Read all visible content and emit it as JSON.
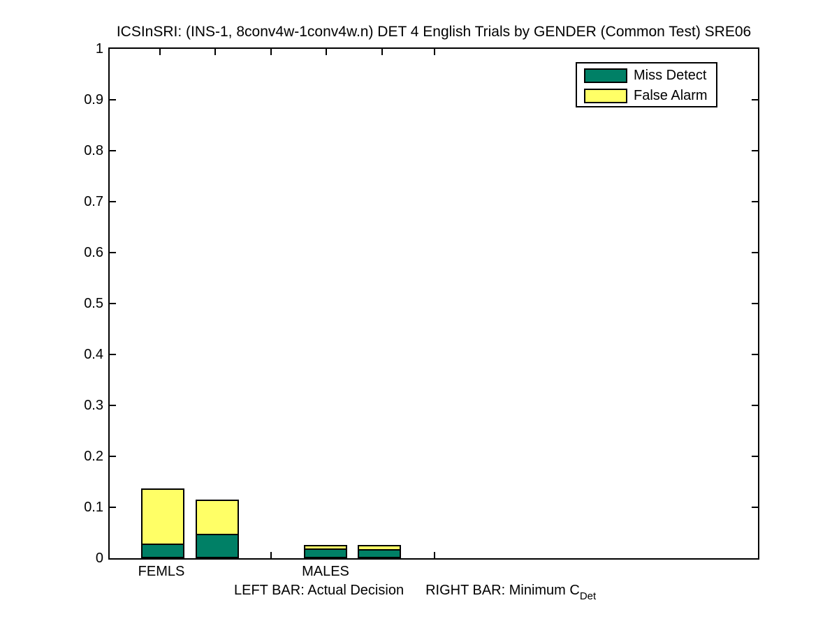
{
  "figure": {
    "title": "ICSInSRI: (INS-1, 8conv4w-1conv4w.n) DET 4 English Trials by GENDER (Common Test) SRE06"
  },
  "chart_data": {
    "type": "bar",
    "stacked": true,
    "title": "ICSInSRI: (INS-1, 8conv4w-1conv4w.n) DET 4 English Trials by GENDER (Common Test) SRE06",
    "ylim": [
      0,
      1
    ],
    "y_tick_labels": [
      "0",
      "0.1",
      "0.2",
      "0.3",
      "0.4",
      "0.5",
      "0.6",
      "0.7",
      "0.8",
      "0.9",
      "1"
    ],
    "grid": false,
    "legend_position": "top-right",
    "series_names": [
      "Miss Detect",
      "False Alarm"
    ],
    "colors": {
      "miss_detect": "#008066",
      "false_alarm": "#FFFF66",
      "edge": "#000000",
      "background": "#FFFFFF"
    },
    "categories": [
      "FEMLS",
      "MALES"
    ],
    "bar_semantics": {
      "left_bar": "Actual Decision",
      "right_bar": "Minimum C_Det"
    },
    "groups": [
      {
        "category": "FEMLS",
        "bars": [
          {
            "bar": "Actual Decision",
            "miss_detect": 0.029,
            "false_alarm": 0.108,
            "total": 0.137
          },
          {
            "bar": "Minimum C_Det",
            "miss_detect": 0.048,
            "false_alarm": 0.067,
            "total": 0.115
          }
        ]
      },
      {
        "category": "MALES",
        "bars": [
          {
            "bar": "Actual Decision",
            "miss_detect": 0.019,
            "false_alarm": 0.007,
            "total": 0.026
          },
          {
            "bar": "Minimum C_Det",
            "miss_detect": 0.018,
            "false_alarm": 0.008,
            "total": 0.026
          }
        ]
      }
    ]
  },
  "legend": {
    "items": [
      {
        "label": "Miss Detect",
        "color": "#008066"
      },
      {
        "label": "False Alarm",
        "color": "#FFFF66"
      }
    ]
  },
  "x_axis": {
    "labels": [
      "FEMLS",
      "MALES"
    ]
  },
  "caption": {
    "left": "LEFT BAR: Actual Decision",
    "right_text": "RIGHT BAR: Minimum C",
    "right_subscript": "Det"
  }
}
